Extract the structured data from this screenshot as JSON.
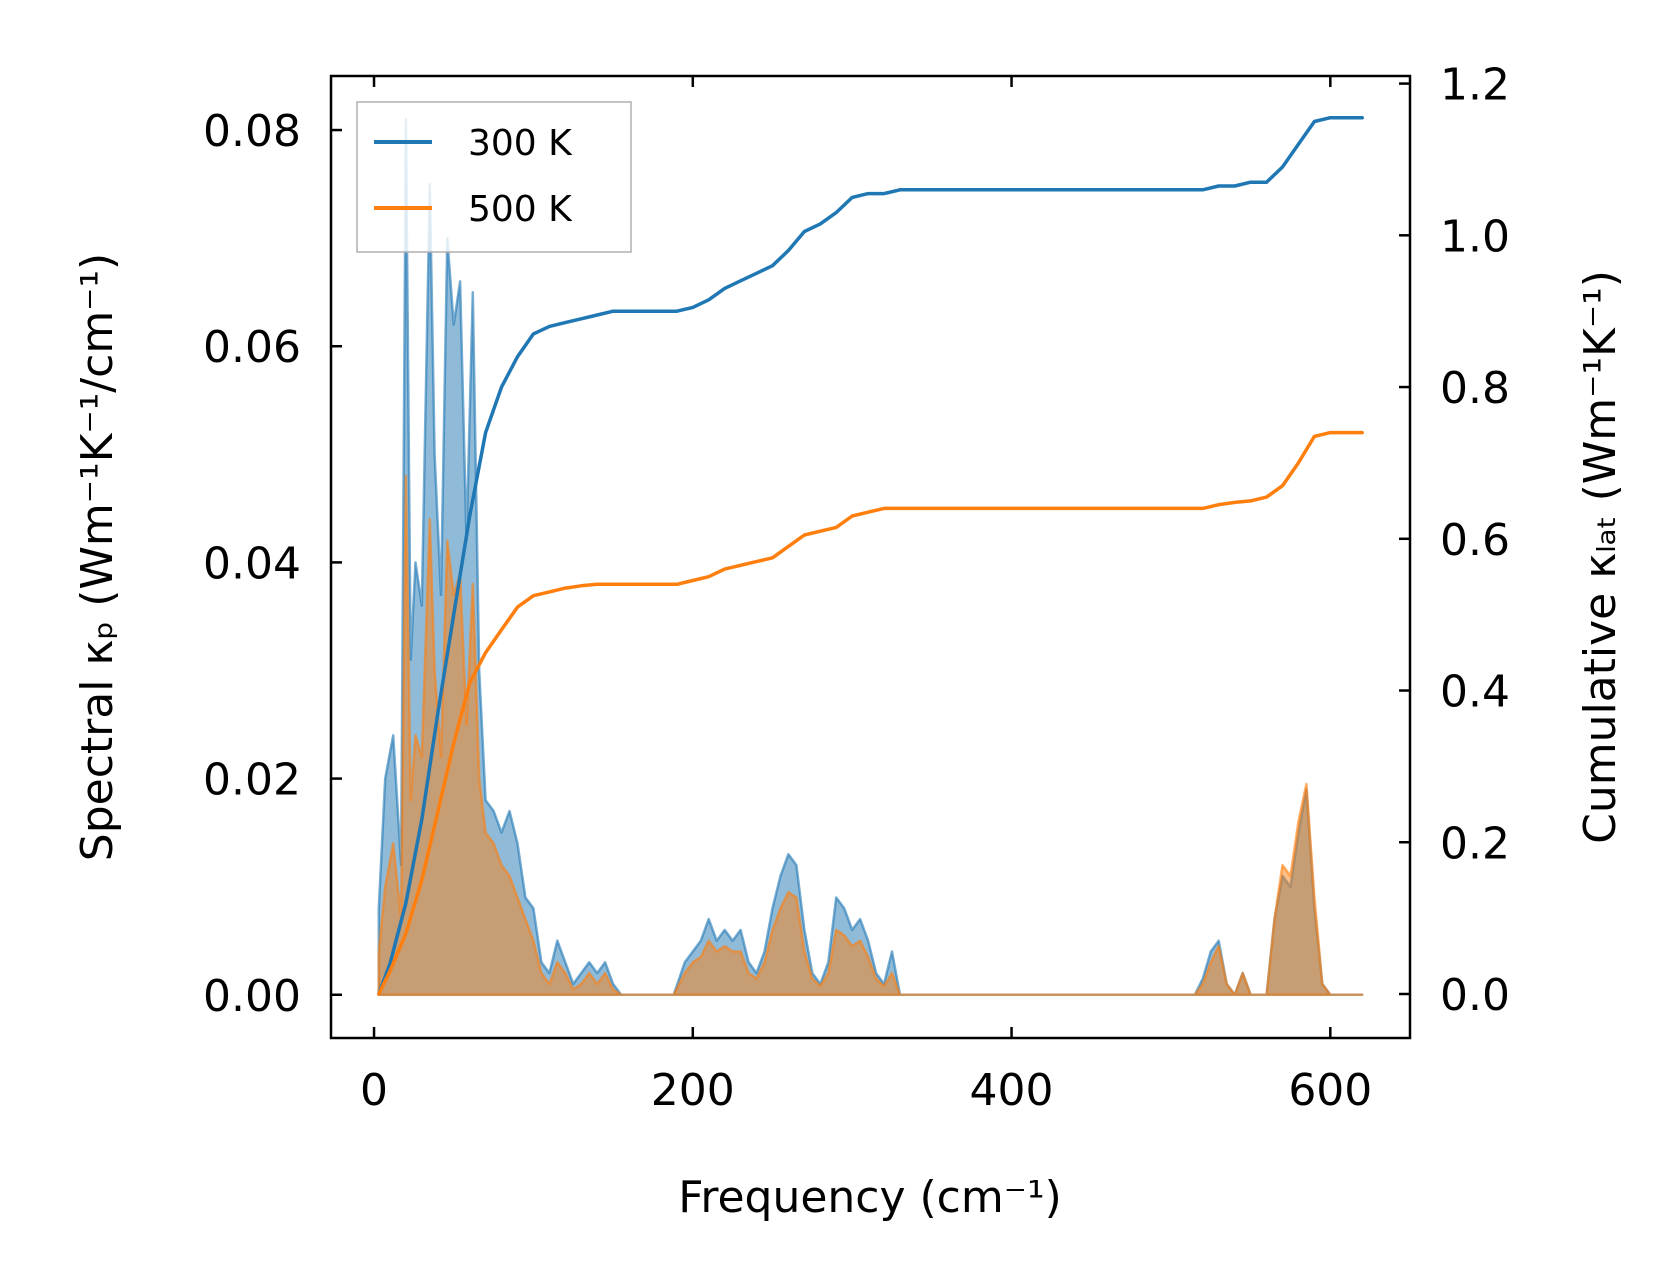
{
  "chart_data": {
    "type": "line",
    "xlabel": "Frequency (cm⁻¹)",
    "ylabel_left": "Spectral κₚ (Wm⁻¹K⁻¹/cm⁻¹)",
    "ylabel_right": "Cumulative κₗₐₜ (Wm⁻¹K⁻¹)",
    "xlim": [
      -27,
      650
    ],
    "ylim_left": [
      -0.004,
      0.085
    ],
    "ylim_right": [
      -0.058,
      1.21
    ],
    "x_ticks": [
      0,
      200,
      400,
      600
    ],
    "y_ticks_left": [
      0.0,
      0.02,
      0.04,
      0.06,
      0.08
    ],
    "y_ticks_left_labels": [
      "0.00",
      "0.02",
      "0.04",
      "0.06",
      "0.08"
    ],
    "y_ticks_right": [
      0.0,
      0.2,
      0.4,
      0.6,
      0.8,
      1.0,
      1.2
    ],
    "y_ticks_right_labels": [
      "0.0",
      "0.2",
      "0.4",
      "0.6",
      "0.8",
      "1.0",
      "1.2"
    ],
    "grid": false,
    "legend_position": "top-left",
    "colors": {
      "300 K": "#1f77b4",
      "500 K": "#ff7f0e"
    },
    "series": [
      {
        "name": "300 K",
        "axis": "left",
        "kind": "filled-area",
        "x": [
          3,
          7,
          12,
          17,
          20,
          23,
          26,
          30,
          35,
          38,
          42,
          46,
          50,
          54,
          58,
          62,
          66,
          70,
          75,
          80,
          85,
          90,
          95,
          100,
          105,
          110,
          115,
          120,
          125,
          130,
          135,
          140,
          145,
          150,
          155,
          160,
          170,
          180,
          188,
          195,
          200,
          205,
          210,
          215,
          220,
          225,
          230,
          235,
          240,
          245,
          250,
          255,
          260,
          265,
          270,
          275,
          280,
          285,
          290,
          295,
          300,
          305,
          310,
          315,
          320,
          325,
          330,
          340,
          400,
          500,
          515,
          520,
          525,
          530,
          535,
          540,
          545,
          550,
          555,
          560,
          565,
          570,
          575,
          580,
          585,
          590,
          595,
          600,
          620
        ],
        "y": [
          0.008,
          0.02,
          0.024,
          0.012,
          0.081,
          0.031,
          0.04,
          0.036,
          0.075,
          0.05,
          0.037,
          0.07,
          0.062,
          0.066,
          0.042,
          0.065,
          0.03,
          0.018,
          0.017,
          0.015,
          0.017,
          0.014,
          0.009,
          0.008,
          0.003,
          0.002,
          0.005,
          0.003,
          0.001,
          0.002,
          0.003,
          0.002,
          0.003,
          0.001,
          0.0,
          0.0,
          0.0,
          0.0,
          0.0,
          0.003,
          0.004,
          0.005,
          0.007,
          0.005,
          0.006,
          0.005,
          0.006,
          0.003,
          0.002,
          0.004,
          0.008,
          0.011,
          0.013,
          0.012,
          0.006,
          0.002,
          0.001,
          0.003,
          0.009,
          0.008,
          0.006,
          0.007,
          0.005,
          0.002,
          0.001,
          0.004,
          0.0,
          0.0,
          0.0,
          0.0,
          0.0,
          0.0015,
          0.004,
          0.005,
          0.001,
          0.0,
          0.002,
          0.0,
          0.0,
          0.0,
          0.007,
          0.011,
          0.01,
          0.015,
          0.019,
          0.008,
          0.001,
          0.0,
          0.0
        ]
      },
      {
        "name": "500 K",
        "axis": "left",
        "kind": "filled-area",
        "x": [
          3,
          7,
          12,
          17,
          20,
          23,
          26,
          30,
          35,
          38,
          42,
          46,
          50,
          54,
          58,
          62,
          66,
          70,
          75,
          80,
          85,
          90,
          95,
          100,
          105,
          110,
          115,
          120,
          125,
          130,
          135,
          140,
          145,
          150,
          155,
          160,
          170,
          180,
          188,
          195,
          200,
          205,
          210,
          215,
          220,
          225,
          230,
          235,
          240,
          245,
          250,
          255,
          260,
          265,
          270,
          275,
          280,
          285,
          290,
          295,
          300,
          305,
          310,
          315,
          320,
          325,
          330,
          340,
          400,
          500,
          515,
          520,
          525,
          530,
          535,
          540,
          545,
          550,
          555,
          560,
          565,
          570,
          575,
          580,
          585,
          590,
          595,
          600,
          620
        ],
        "y": [
          0.004,
          0.01,
          0.014,
          0.007,
          0.048,
          0.018,
          0.024,
          0.022,
          0.044,
          0.03,
          0.022,
          0.042,
          0.037,
          0.039,
          0.025,
          0.038,
          0.02,
          0.015,
          0.014,
          0.012,
          0.011,
          0.009,
          0.007,
          0.005,
          0.002,
          0.001,
          0.003,
          0.002,
          0.0005,
          0.001,
          0.002,
          0.001,
          0.002,
          0.0005,
          0.0,
          0.0,
          0.0,
          0.0,
          0.0,
          0.002,
          0.003,
          0.0035,
          0.005,
          0.004,
          0.0045,
          0.004,
          0.004,
          0.002,
          0.0015,
          0.003,
          0.006,
          0.008,
          0.0095,
          0.009,
          0.004,
          0.0015,
          0.0008,
          0.002,
          0.006,
          0.0055,
          0.0045,
          0.005,
          0.0035,
          0.0015,
          0.0008,
          0.002,
          0.0,
          0.0,
          0.0,
          0.0,
          0.0,
          0.001,
          0.003,
          0.0045,
          0.001,
          0.0,
          0.002,
          0.0,
          0.0,
          0.0,
          0.007,
          0.012,
          0.011,
          0.016,
          0.0195,
          0.009,
          0.001,
          0.0,
          0.0
        ]
      },
      {
        "name": "300 K",
        "axis": "right",
        "kind": "line",
        "x": [
          3,
          10,
          20,
          30,
          40,
          50,
          60,
          70,
          80,
          90,
          100,
          110,
          120,
          130,
          140,
          150,
          160,
          170,
          180,
          190,
          200,
          210,
          220,
          230,
          240,
          250,
          260,
          270,
          280,
          290,
          300,
          310,
          320,
          330,
          400,
          500,
          520,
          530,
          540,
          550,
          560,
          570,
          580,
          590,
          600,
          620
        ],
        "y": [
          0.0,
          0.04,
          0.12,
          0.23,
          0.37,
          0.5,
          0.63,
          0.74,
          0.8,
          0.84,
          0.87,
          0.88,
          0.885,
          0.89,
          0.895,
          0.9,
          0.9,
          0.9,
          0.9,
          0.9,
          0.905,
          0.915,
          0.93,
          0.94,
          0.95,
          0.96,
          0.98,
          1.005,
          1.015,
          1.03,
          1.05,
          1.055,
          1.055,
          1.06,
          1.06,
          1.06,
          1.06,
          1.065,
          1.065,
          1.07,
          1.07,
          1.09,
          1.12,
          1.15,
          1.155,
          1.155
        ]
      },
      {
        "name": "500 K",
        "axis": "right",
        "kind": "line",
        "x": [
          3,
          10,
          20,
          30,
          40,
          50,
          60,
          70,
          80,
          90,
          100,
          110,
          120,
          130,
          140,
          150,
          160,
          170,
          180,
          190,
          200,
          210,
          220,
          230,
          240,
          250,
          260,
          270,
          280,
          290,
          300,
          310,
          320,
          330,
          400,
          500,
          520,
          530,
          540,
          550,
          560,
          570,
          580,
          590,
          600,
          620
        ],
        "y": [
          0.0,
          0.03,
          0.08,
          0.15,
          0.24,
          0.33,
          0.41,
          0.45,
          0.48,
          0.51,
          0.525,
          0.53,
          0.535,
          0.538,
          0.54,
          0.54,
          0.54,
          0.54,
          0.54,
          0.54,
          0.545,
          0.55,
          0.56,
          0.565,
          0.57,
          0.575,
          0.59,
          0.605,
          0.61,
          0.615,
          0.63,
          0.635,
          0.64,
          0.64,
          0.64,
          0.64,
          0.64,
          0.645,
          0.648,
          0.65,
          0.655,
          0.67,
          0.7,
          0.735,
          0.74,
          0.74
        ]
      }
    ]
  }
}
